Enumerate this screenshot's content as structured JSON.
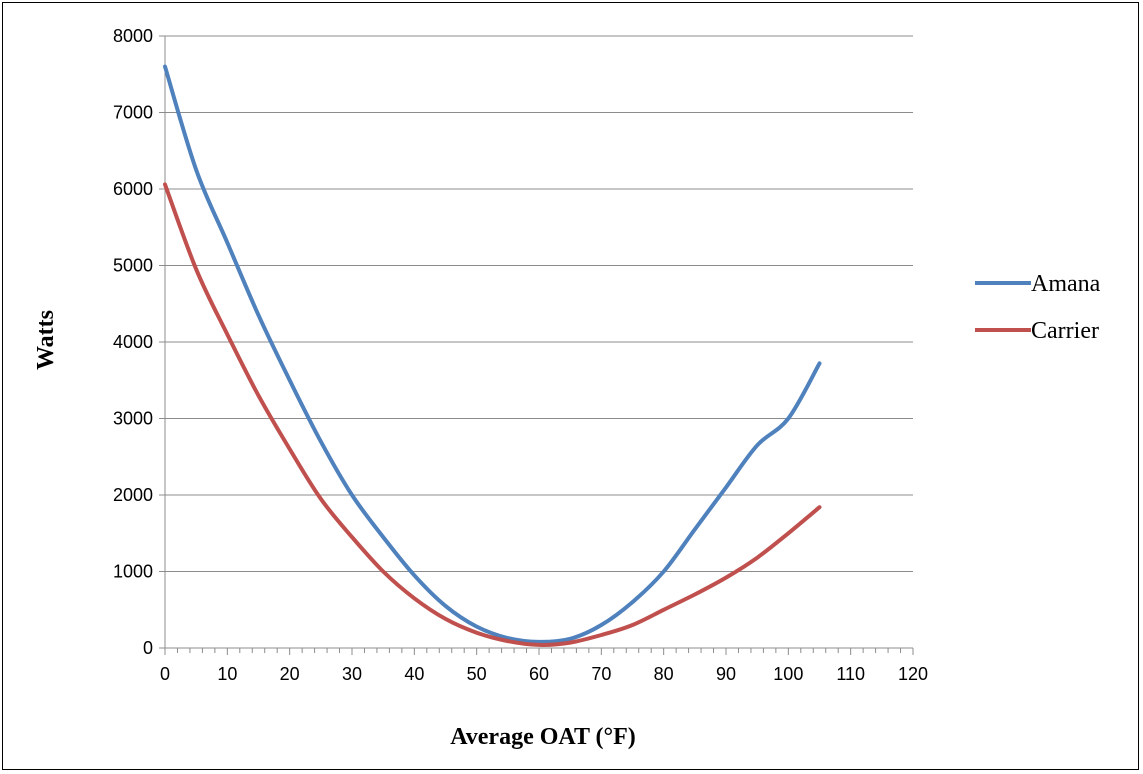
{
  "chart_data": {
    "type": "line",
    "title": "",
    "xlabel": "Average OAT (°F)",
    "ylabel": "Watts",
    "xlim": [
      0,
      120
    ],
    "ylim": [
      0,
      8000
    ],
    "x_ticks": [
      "0",
      "10",
      "20",
      "30",
      "40",
      "50",
      "60",
      "70",
      "80",
      "90",
      "100",
      "110",
      "120"
    ],
    "y_ticks": [
      "0",
      "1000",
      "2000",
      "3000",
      "4000",
      "5000",
      "6000",
      "7000",
      "8000"
    ],
    "grid": "horizontal",
    "legend_position": "right",
    "x": [
      0,
      5,
      10,
      15,
      20,
      25,
      30,
      35,
      40,
      45,
      50,
      55,
      60,
      65,
      70,
      75,
      80,
      85,
      90,
      95,
      100,
      105
    ],
    "series": [
      {
        "name": "Amana",
        "color": "#4F81BD",
        "values": [
          7600,
          6250,
          5300,
          4350,
          3500,
          2700,
          2000,
          1450,
          950,
          550,
          280,
          130,
          80,
          120,
          300,
          600,
          1000,
          1550,
          2100,
          2650,
          3000,
          3720
        ]
      },
      {
        "name": "Carrier",
        "color": "#C0504D",
        "values": [
          6060,
          4950,
          4100,
          3300,
          2600,
          1950,
          1450,
          1000,
          650,
          380,
          200,
          90,
          40,
          70,
          170,
          300,
          500,
          700,
          920,
          1180,
          1500,
          1840
        ]
      }
    ]
  }
}
